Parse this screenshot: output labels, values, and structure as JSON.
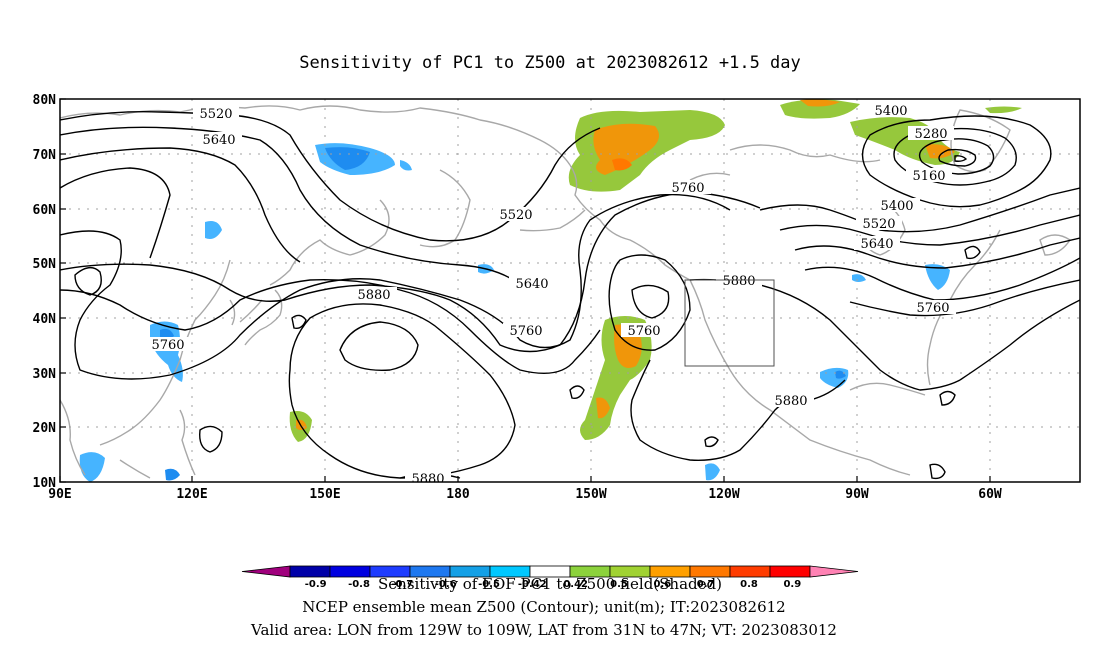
{
  "title": "Sensitivity of PC1 to Z500 at 2023082612 +1.5 day",
  "lat_labels": [
    "80N",
    "70N",
    "60N",
    "50N",
    "40N",
    "30N",
    "20N",
    "10N"
  ],
  "lon_labels": [
    "90E",
    "120E",
    "150E",
    "180",
    "150W",
    "120W",
    "90W",
    "60W"
  ],
  "contour_labels": {
    "c5520a": "5520",
    "c5640a": "5640",
    "c5520b": "5520",
    "c5640b": "5640",
    "c5760a": "5760",
    "c5760b": "5760",
    "c5760c": "5760",
    "c5760d": "5760",
    "c5760e": "5760",
    "c5880a": "5880",
    "c5880b": "5880",
    "c5880c": "5880",
    "c5880d": "5880",
    "c5400a": "5400",
    "c5400b": "5400",
    "c5280": "5280",
    "c5160": "5160",
    "c5520c": "5520",
    "c5640c": "5640"
  },
  "colorbar": {
    "levels": [
      "-0.9",
      "-0.8",
      "-0.7",
      "-0.6",
      "-0.5",
      "-0.42",
      "0.42",
      "0.5",
      "0.6",
      "0.7",
      "0.8",
      "0.9"
    ],
    "colors": [
      "#a0007d",
      "#0000a8",
      "#0000e0",
      "#1e3cff",
      "#1e78f0",
      "#14a0e6",
      "#00c8ff",
      "#ffffff",
      "#8cd23c",
      "#a0d232",
      "#ffa000",
      "#ff7800",
      "#ff3c00",
      "#ff0000",
      "#ff82b4"
    ]
  },
  "captions": {
    "line1": "Sensitivity of EOF PC1 to Z500 field(Shaded)",
    "line2": "NCEP ensemble mean Z500 (Contour); unit(m); IT:2023082612",
    "line3": "Valid area: LON from 129W to 109W, LAT from 31N to 47N; VT: 2023083012"
  },
  "colors": {
    "coast": "#a8a8a8",
    "grid": "#a0a0a0",
    "green": "#96c83c",
    "orange": "#f0960a",
    "blue": "#1e8cf0",
    "lightblue": "#46b4ff"
  }
}
